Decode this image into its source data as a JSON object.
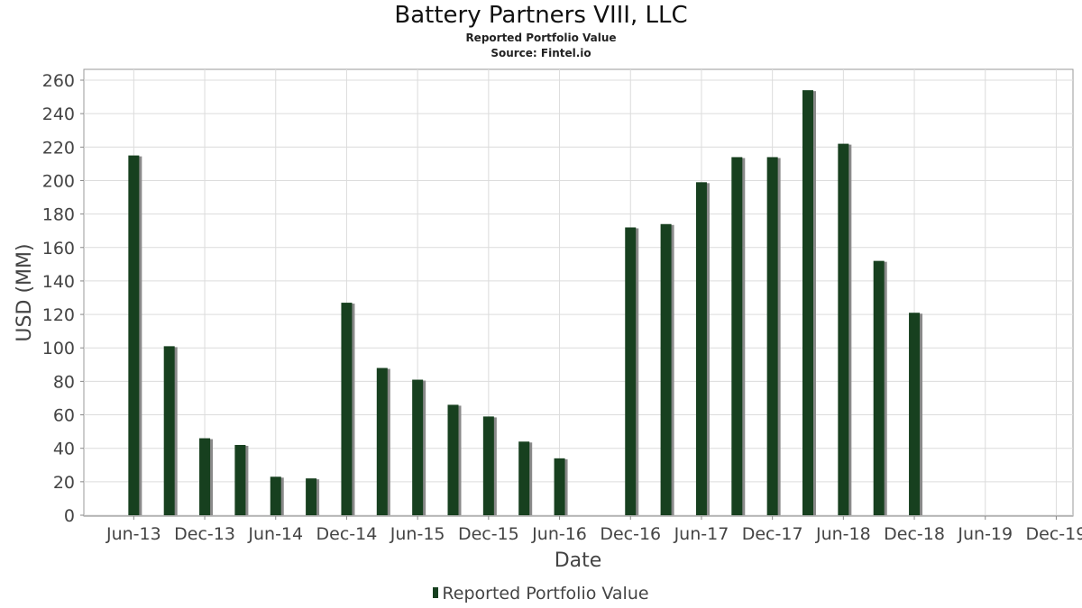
{
  "chart_data": {
    "type": "bar",
    "title": "Battery Partners VIII, LLC",
    "subtitle_lines": [
      "Reported Portfolio Value",
      "Source: Fintel.io"
    ],
    "xlabel": "Date",
    "ylabel": "USD (MM)",
    "ylim": [
      0,
      260
    ],
    "yticks": [
      0,
      20,
      40,
      60,
      80,
      100,
      120,
      140,
      160,
      180,
      200,
      220,
      240,
      260
    ],
    "xlim": [
      "2013-03",
      "2019-12"
    ],
    "xticks": [
      {
        "label": "Jun-13",
        "date": "2013-06"
      },
      {
        "label": "Dec-13",
        "date": "2013-12"
      },
      {
        "label": "Jun-14",
        "date": "2014-06"
      },
      {
        "label": "Dec-14",
        "date": "2014-12"
      },
      {
        "label": "Jun-15",
        "date": "2015-06"
      },
      {
        "label": "Dec-15",
        "date": "2015-12"
      },
      {
        "label": "Jun-16",
        "date": "2016-06"
      },
      {
        "label": "Dec-16",
        "date": "2016-12"
      },
      {
        "label": "Jun-17",
        "date": "2017-06"
      },
      {
        "label": "Dec-17",
        "date": "2017-12"
      },
      {
        "label": "Jun-18",
        "date": "2018-06"
      },
      {
        "label": "Dec-18",
        "date": "2018-12"
      },
      {
        "label": "Jun-19",
        "date": "2019-06"
      },
      {
        "label": "Dec-19",
        "date": "2019-12"
      }
    ],
    "grid": true,
    "legend_position": "bottom-center",
    "series": [
      {
        "name": "Reported Portfolio Value",
        "color": "#17401f",
        "points": [
          {
            "date": "2013-06",
            "value": 215
          },
          {
            "date": "2013-09",
            "value": 101
          },
          {
            "date": "2013-12",
            "value": 46
          },
          {
            "date": "2014-03",
            "value": 42
          },
          {
            "date": "2014-06",
            "value": 23
          },
          {
            "date": "2014-09",
            "value": 22
          },
          {
            "date": "2014-12",
            "value": 127
          },
          {
            "date": "2015-03",
            "value": 88
          },
          {
            "date": "2015-06",
            "value": 81
          },
          {
            "date": "2015-09",
            "value": 66
          },
          {
            "date": "2015-12",
            "value": 59
          },
          {
            "date": "2016-03",
            "value": 44
          },
          {
            "date": "2016-06",
            "value": 34
          },
          {
            "date": "2016-12",
            "value": 172
          },
          {
            "date": "2017-03",
            "value": 174
          },
          {
            "date": "2017-06",
            "value": 199
          },
          {
            "date": "2017-09",
            "value": 214
          },
          {
            "date": "2017-12",
            "value": 214
          },
          {
            "date": "2018-03",
            "value": 254
          },
          {
            "date": "2018-06",
            "value": 222
          },
          {
            "date": "2018-09",
            "value": 152
          },
          {
            "date": "2018-12",
            "value": 121
          }
        ]
      }
    ]
  }
}
